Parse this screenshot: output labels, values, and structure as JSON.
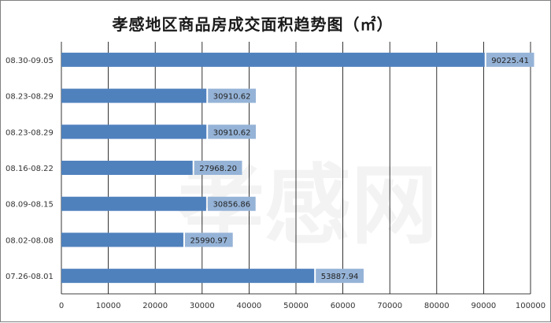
{
  "chart_data": {
    "type": "bar",
    "orientation": "horizontal",
    "title": "孝感地区商品房成交面积趋势图（㎡）",
    "categories": [
      "08.30-09.05",
      "08.23-08.29",
      "08.23-08.29",
      "08.16-08.22",
      "08.09-08.15",
      "08.02-08.08",
      "07.26-08.01"
    ],
    "values": [
      90225.41,
      30910.62,
      30910.62,
      27968.2,
      30856.86,
      25990.97,
      53887.94
    ],
    "value_labels": [
      "90225.41",
      "30910.62",
      "30910.62",
      "27968.20",
      "30856.86",
      "25990.97",
      "53887.94"
    ],
    "xlim": [
      0,
      100000
    ],
    "x_ticks": [
      "0",
      "10000",
      "20000",
      "30000",
      "40000",
      "50000",
      "60000",
      "70000",
      "80000",
      "90000",
      "100000"
    ],
    "grid": true,
    "legend": "none",
    "bar_color": "#4f81bd",
    "label_bg_color": "#95b3d7"
  },
  "watermark": "孝感网"
}
